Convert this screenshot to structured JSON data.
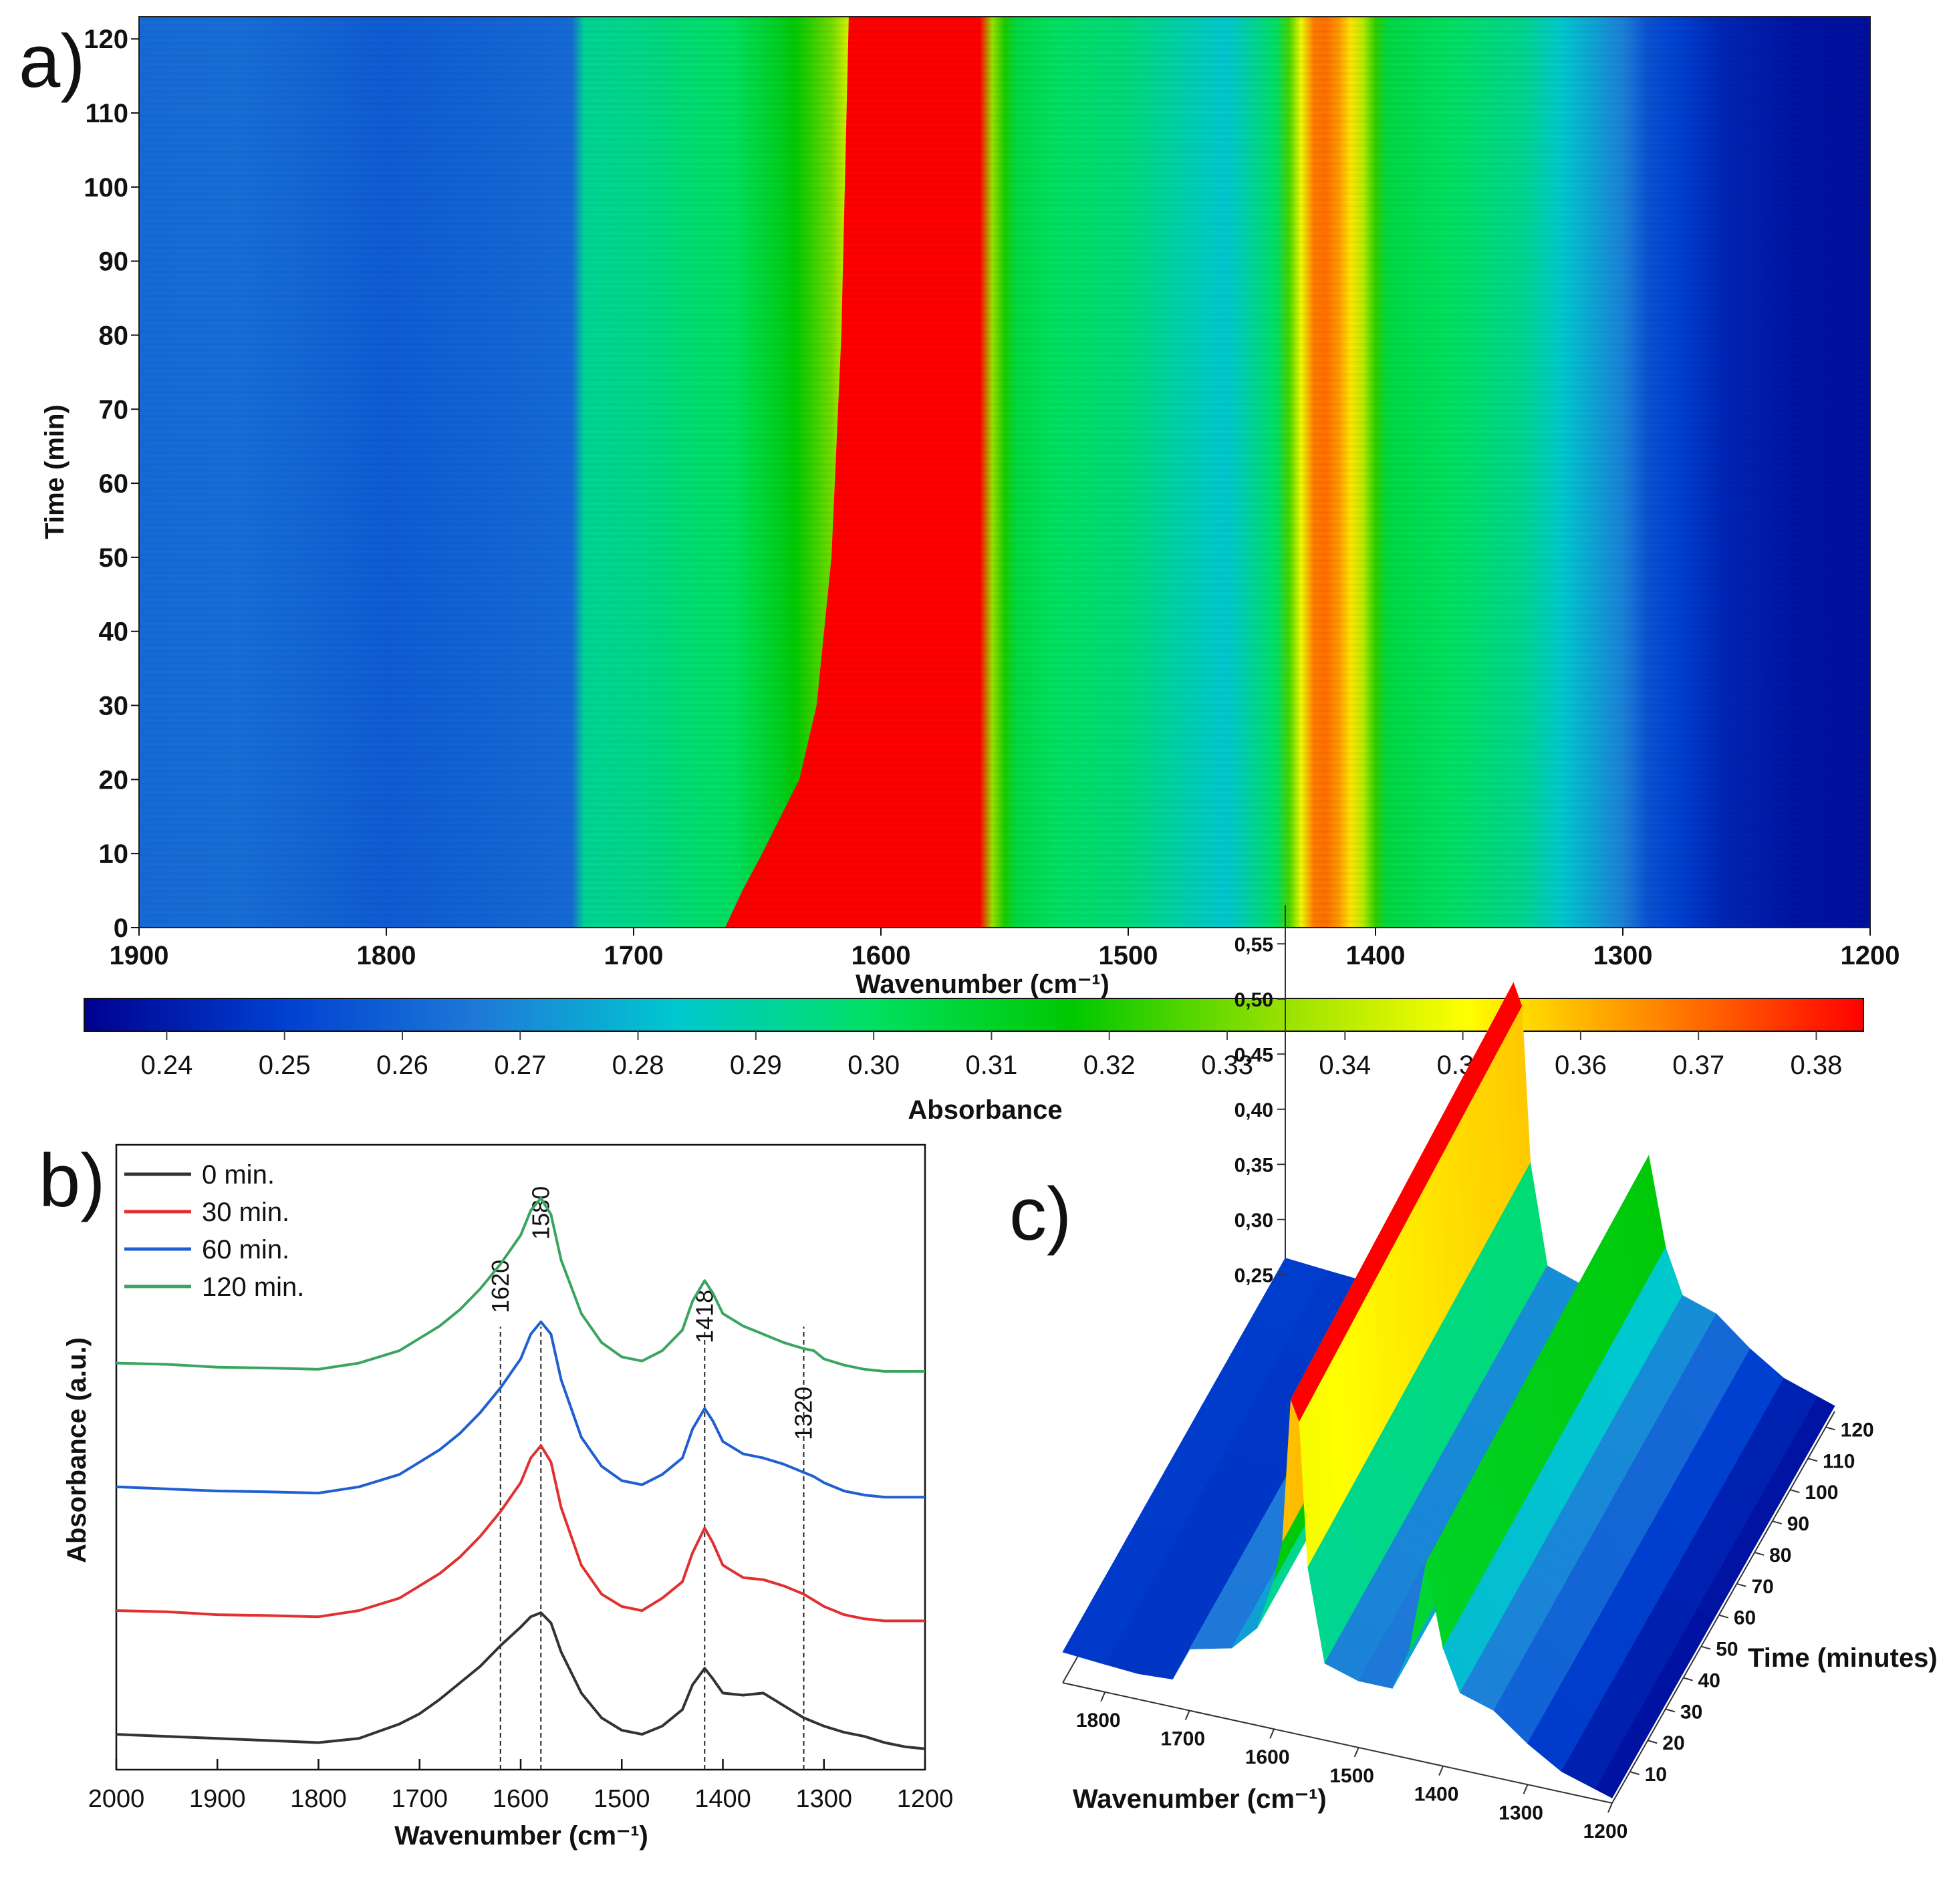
{
  "panels": {
    "a": {
      "label": "a)",
      "chart_data": {
        "type": "heatmap",
        "xlabel": "Wavenumber (cm⁻¹)",
        "ylabel": "Time (min)",
        "x_range": [
          1900,
          1200
        ],
        "y_range": [
          0,
          123
        ],
        "x_ticks": [
          1900,
          1800,
          1700,
          1600,
          1500,
          1400,
          1300,
          1200
        ],
        "y_ticks": [
          0,
          10,
          20,
          30,
          40,
          50,
          60,
          70,
          80,
          90,
          100,
          110,
          120
        ],
        "colorbar": {
          "label": "Absorbance",
          "range": [
            0.233,
            0.384
          ],
          "ticks": [
            "0.24",
            "0.25",
            "0.26",
            "0.27",
            "0.28",
            "0.29",
            "0.30",
            "0.31",
            "0.32",
            "0.33",
            "0.34",
            "0.35",
            "0.36",
            "0.37",
            "0.38"
          ],
          "colors": [
            "#00008f",
            "#0040d0",
            "#1e7ad8",
            "#00c8d0",
            "#00e060",
            "#00c800",
            "#90e000",
            "#ffff00",
            "#ff8000",
            "#ff0000"
          ]
        },
        "profile_wavenumbers": [
          1900,
          1860,
          1800,
          1760,
          1725,
          1720,
          1700,
          1660,
          1640,
          1620,
          1605,
          1600,
          1590,
          1570,
          1560,
          1555,
          1545,
          1530,
          1500,
          1460,
          1440,
          1432,
          1425,
          1418,
          1408,
          1400,
          1395,
          1370,
          1340,
          1300,
          1290,
          1260,
          1230,
          1200
        ],
        "profile_absorbance": [
          0.262,
          0.263,
          0.258,
          0.26,
          0.262,
          0.292,
          0.294,
          0.3,
          0.312,
          0.33,
          0.36,
          0.384,
          0.386,
          0.386,
          0.384,
          0.335,
          0.305,
          0.3,
          0.296,
          0.283,
          0.3,
          0.34,
          0.368,
          0.37,
          0.35,
          0.322,
          0.305,
          0.3,
          0.293,
          0.268,
          0.255,
          0.243,
          0.238,
          0.237
        ],
        "red_band_left_edge": [
          [
            0,
            1655
          ],
          [
            5,
            1648
          ],
          [
            10,
            1640
          ],
          [
            20,
            1625
          ],
          [
            30,
            1618
          ],
          [
            50,
            1612
          ],
          [
            80,
            1608
          ],
          [
            123,
            1605
          ]
        ]
      }
    },
    "b": {
      "label": "b)",
      "chart_data": {
        "type": "line",
        "xlabel": "Wavenumber (cm⁻¹)",
        "ylabel": "Absorbance (a.u.)",
        "xlim": [
          2000,
          1200
        ],
        "x_ticks": [
          2000,
          1900,
          1800,
          1700,
          1600,
          1500,
          1400,
          1300,
          1200
        ],
        "peak_labels": [
          {
            "text": "1620",
            "x": 1620
          },
          {
            "text": "1580",
            "x": 1580
          },
          {
            "text": "1418",
            "x": 1418
          },
          {
            "text": "1320",
            "x": 1320
          }
        ],
        "x": [
          2000,
          1950,
          1900,
          1850,
          1800,
          1760,
          1720,
          1700,
          1680,
          1660,
          1640,
          1620,
          1600,
          1590,
          1580,
          1570,
          1560,
          1540,
          1520,
          1500,
          1480,
          1460,
          1440,
          1430,
          1418,
          1410,
          1400,
          1380,
          1360,
          1340,
          1320,
          1310,
          1300,
          1280,
          1260,
          1240,
          1220,
          1200
        ],
        "series": [
          {
            "name": "0 min.",
            "color": "#333333",
            "offset": 0.0,
            "values": [
              0.05,
              0.045,
              0.04,
              0.035,
              0.03,
              0.04,
              0.075,
              0.1,
              0.135,
              0.175,
              0.215,
              0.265,
              0.31,
              0.335,
              0.345,
              0.32,
              0.25,
              0.15,
              0.09,
              0.06,
              0.05,
              0.07,
              0.11,
              0.17,
              0.21,
              0.185,
              0.15,
              0.145,
              0.15,
              0.12,
              0.09,
              0.08,
              0.07,
              0.055,
              0.045,
              0.03,
              0.02,
              0.015
            ]
          },
          {
            "name": "30 min.",
            "color": "#e03030",
            "offset": 0.3,
            "values": [
              0.05,
              0.047,
              0.04,
              0.038,
              0.035,
              0.05,
              0.08,
              0.11,
              0.14,
              0.18,
              0.23,
              0.29,
              0.36,
              0.42,
              0.45,
              0.41,
              0.3,
              0.16,
              0.09,
              0.06,
              0.05,
              0.08,
              0.12,
              0.19,
              0.25,
              0.215,
              0.16,
              0.13,
              0.125,
              0.11,
              0.09,
              0.075,
              0.06,
              0.04,
              0.03,
              0.025,
              0.025,
              0.025
            ]
          },
          {
            "name": "60 min.",
            "color": "#1f5fd0",
            "offset": 0.6,
            "values": [
              0.05,
              0.045,
              0.04,
              0.038,
              0.035,
              0.05,
              0.08,
              0.11,
              0.14,
              0.18,
              0.23,
              0.29,
              0.36,
              0.42,
              0.45,
              0.42,
              0.31,
              0.17,
              0.1,
              0.065,
              0.055,
              0.08,
              0.12,
              0.19,
              0.24,
              0.21,
              0.16,
              0.13,
              0.12,
              0.105,
              0.085,
              0.075,
              0.06,
              0.04,
              0.03,
              0.025,
              0.025,
              0.025
            ]
          },
          {
            "name": "120 min.",
            "color": "#3aa460",
            "offset": 0.9,
            "values": [
              0.05,
              0.047,
              0.04,
              0.038,
              0.035,
              0.05,
              0.08,
              0.11,
              0.14,
              0.18,
              0.23,
              0.29,
              0.36,
              0.42,
              0.45,
              0.41,
              0.3,
              0.17,
              0.1,
              0.065,
              0.055,
              0.08,
              0.13,
              0.2,
              0.25,
              0.22,
              0.17,
              0.14,
              0.12,
              0.1,
              0.085,
              0.08,
              0.06,
              0.045,
              0.035,
              0.03,
              0.03,
              0.03
            ]
          }
        ]
      }
    },
    "c": {
      "label": "c)",
      "chart_data": {
        "type": "surface",
        "xlabel": "Wavenumber (cm⁻¹)",
        "ylabel": "Time (minutes)",
        "x_ticks": [
          1800,
          1700,
          1600,
          1500,
          1400,
          1300,
          1200
        ],
        "y_ticks": [
          10,
          20,
          30,
          40,
          50,
          60,
          70,
          80,
          90,
          100,
          110,
          120
        ],
        "z_ticks": [
          "0,25",
          "0,30",
          "0,35",
          "0,40",
          "0,45",
          "0,50",
          "0,55"
        ],
        "wavenumbers": [
          1850,
          1800,
          1760,
          1720,
          1700,
          1650,
          1620,
          1600,
          1590,
          1580,
          1570,
          1560,
          1540,
          1500,
          1460,
          1440,
          1420,
          1400,
          1380,
          1340,
          1300,
          1260,
          1220,
          1200
        ],
        "absorbance_at_120min": [
          0.265,
          0.262,
          0.26,
          0.262,
          0.295,
          0.305,
          0.33,
          0.38,
          0.42,
          0.56,
          0.54,
          0.4,
          0.31,
          0.3,
          0.3,
          0.34,
          0.43,
          0.35,
          0.31,
          0.3,
          0.275,
          0.255,
          0.245,
          0.24
        ]
      }
    }
  }
}
